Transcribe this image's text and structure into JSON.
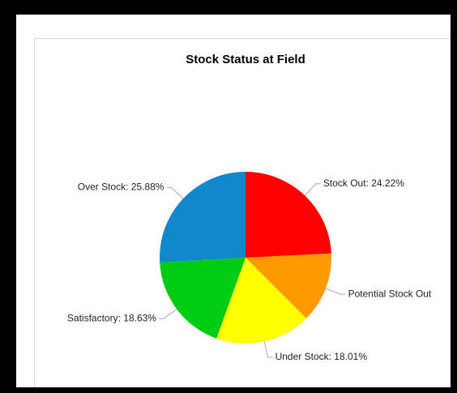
{
  "chart_data": {
    "type": "pie",
    "title": "Stock Status at Field",
    "categories": [
      "Stock Out",
      "Potential Stock Out",
      "Under Stock",
      "Satisfactory",
      "Over Stock"
    ],
    "values": [
      24.22,
      13.26,
      18.01,
      18.63,
      25.88
    ],
    "value_labels": [
      "Stock Out: 24.22%",
      "Potential Stock Out",
      "Under Stock: 18.01%",
      "Satisfactory: 18.63%",
      "Over Stock: 25.88%"
    ],
    "colors": [
      "#ff0000",
      "#ff9900",
      "#ffff00",
      "#00cc11",
      "#1188cc"
    ]
  }
}
